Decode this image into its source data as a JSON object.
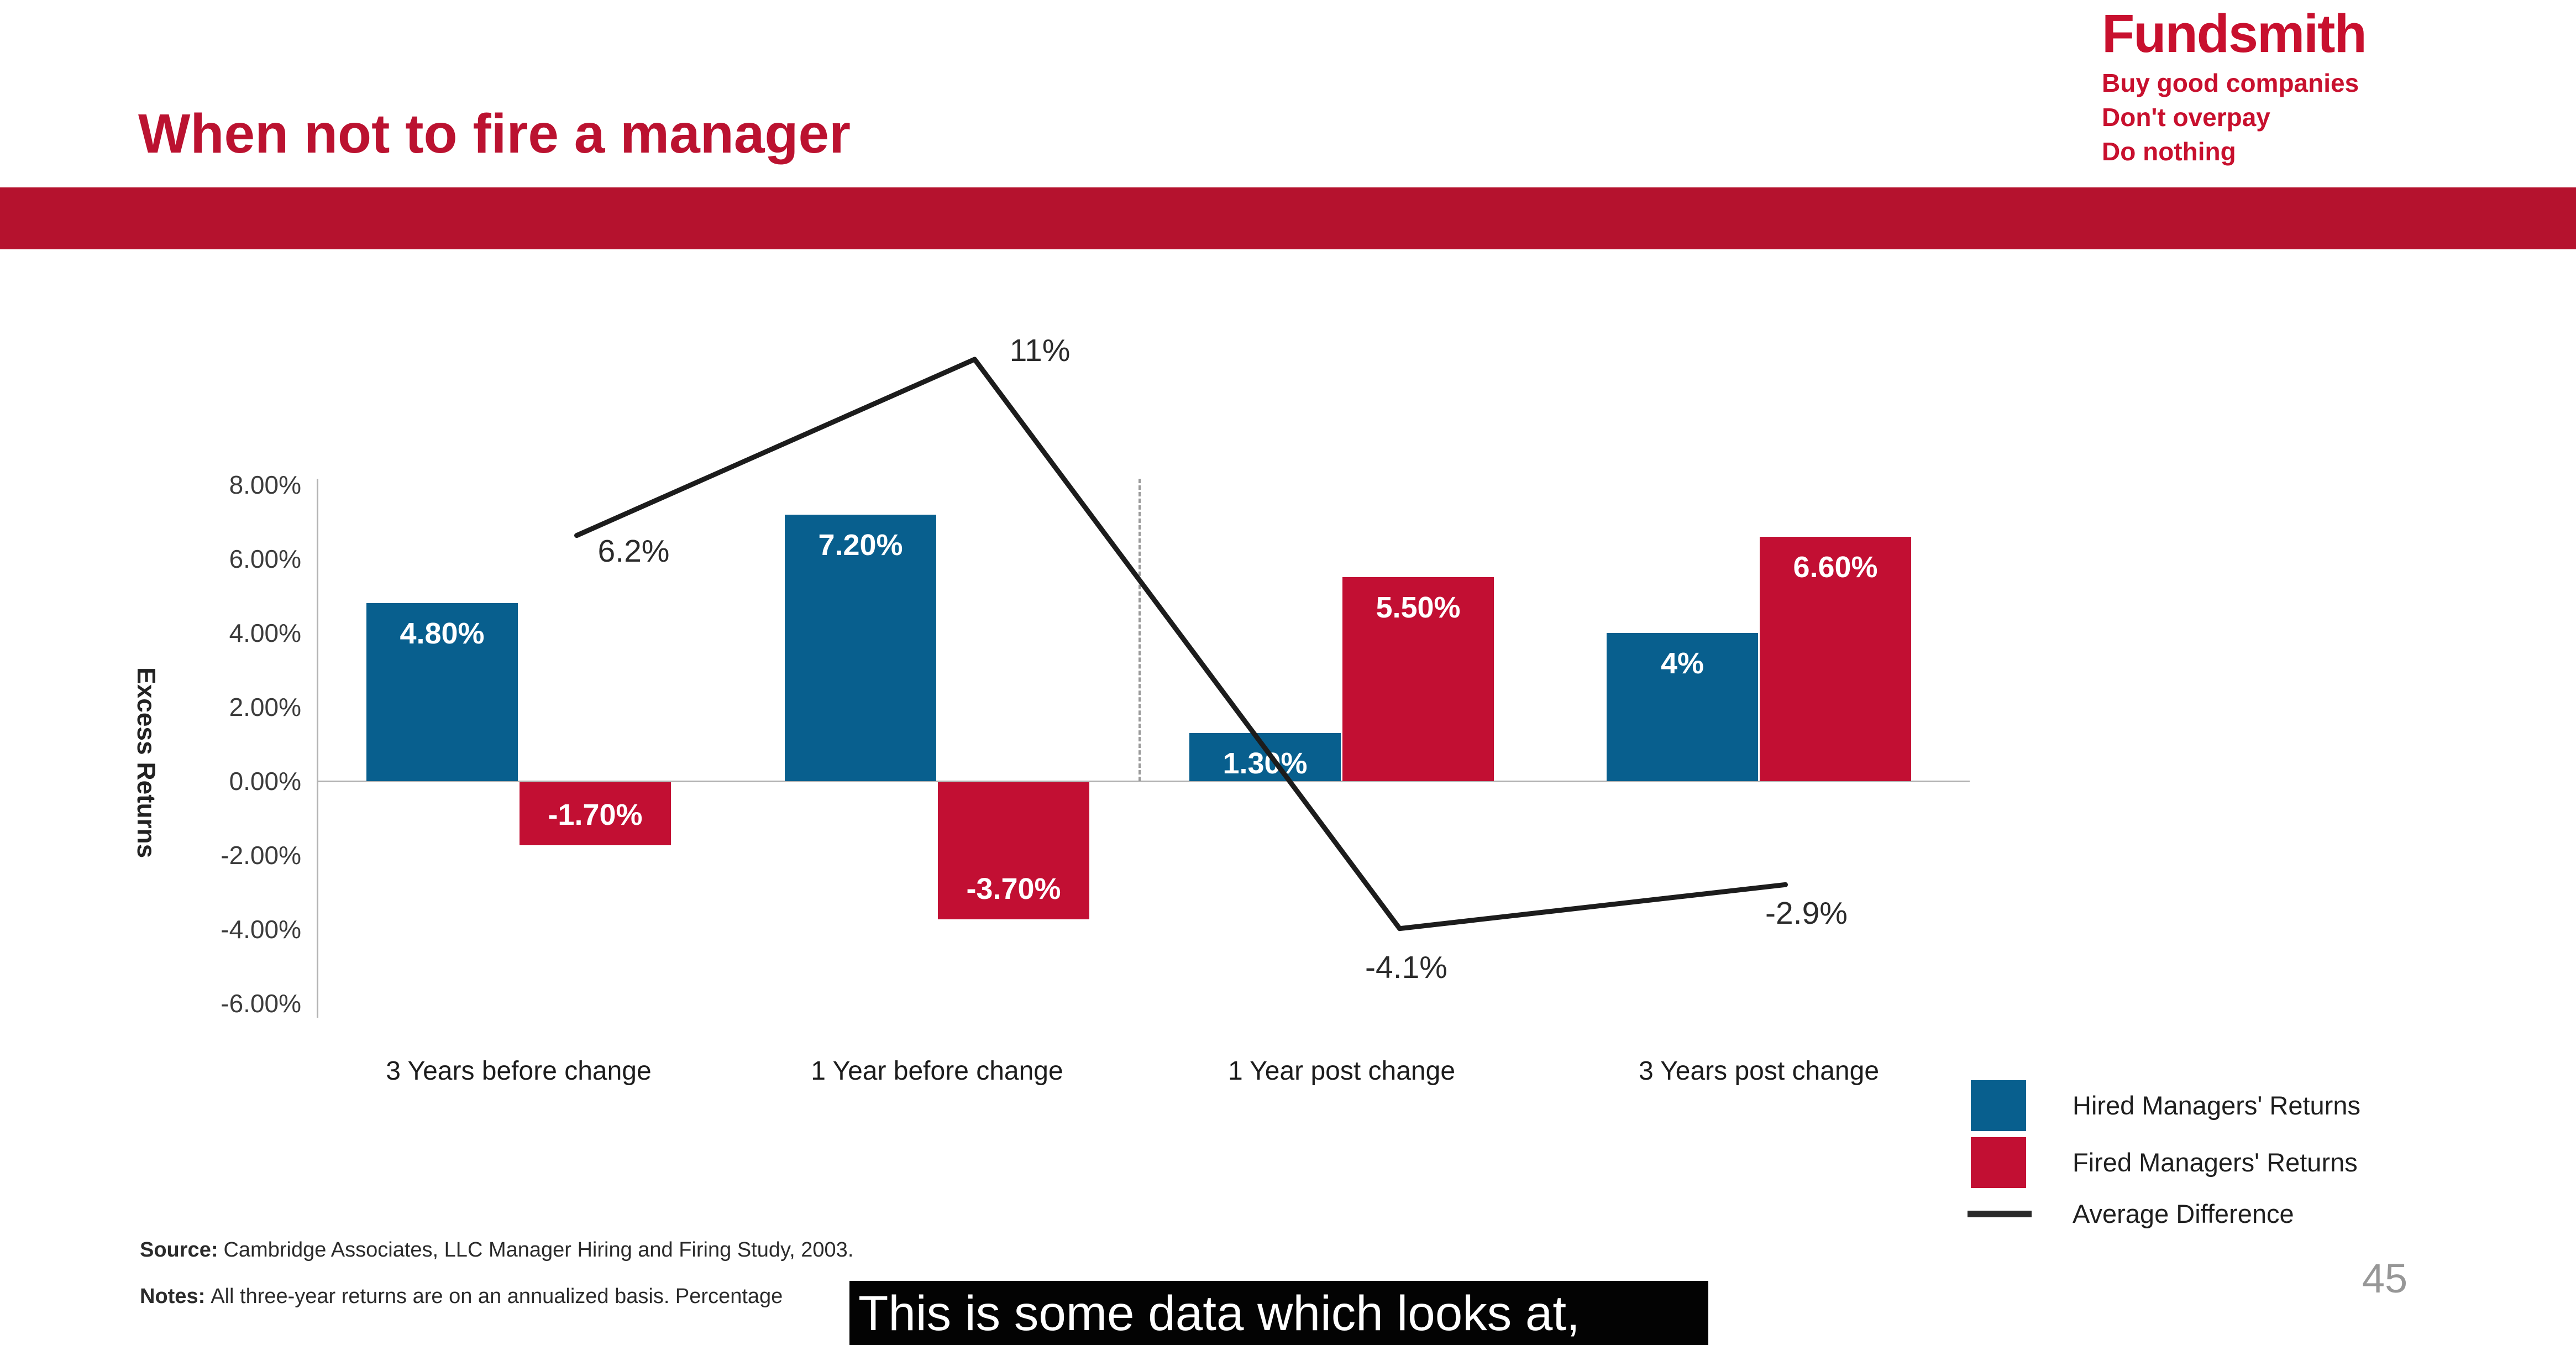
{
  "header": {
    "title": "When not to fire a manager"
  },
  "logo": {
    "brand": "Fundsmith",
    "taglines": [
      "Buy good companies",
      "Don't overpay",
      "Do nothing"
    ]
  },
  "chart_data": {
    "type": "bar",
    "categories": [
      "3 Years before change",
      "1 Year before change",
      "1 Year post change",
      "3 Years post change"
    ],
    "series": [
      {
        "name": "Hired Managers' Returns",
        "color": "#085F8E",
        "values": [
          4.8,
          7.2,
          1.3,
          4
        ],
        "labels": [
          "4.80%",
          "7.20%",
          "1.30%",
          "4%"
        ]
      },
      {
        "name": "Fired Managers' Returns",
        "color": "#C20F33",
        "values": [
          -1.7,
          -3.7,
          5.5,
          6.6
        ],
        "labels": [
          "-1.70%",
          "-3.70%",
          "5.50%",
          "6.60%"
        ]
      }
    ],
    "line_series": {
      "name": "Average Difference",
      "color": "#1C1C1C",
      "values": [
        6.2,
        11,
        -4.1,
        -2.9
      ],
      "labels": [
        "6.2%",
        "11%",
        "-4.1%",
        "-2.9%"
      ]
    },
    "ylabel": "Excess Returns",
    "xlabel": "",
    "ytick_labels": [
      "8.00%",
      "6.00%",
      "4.00%",
      "2.00%",
      "0.00%",
      "-2.00%",
      "-4.00%",
      "-6.00%"
    ],
    "ytick_values": [
      8,
      6,
      4,
      2,
      0,
      -2,
      -4,
      -6
    ],
    "ylim": [
      -6,
      8
    ],
    "grid": false,
    "legend_position": "bottom-right",
    "dashed_separator_between": [
      "1 Year before change",
      "1 Year post change"
    ]
  },
  "legend": {
    "items": [
      {
        "label": "Hired Managers' Returns",
        "swatch": "square",
        "color": "#085F8E"
      },
      {
        "label": "Fired Managers' Returns",
        "swatch": "square",
        "color": "#C20F33"
      },
      {
        "label": "Average Difference",
        "swatch": "line",
        "color": "#2B2B2B"
      }
    ]
  },
  "footer": {
    "source_label": "Source:",
    "source_text": "Cambridge Associates, LLC Manager Hiring and Firing Study, 2003.",
    "notes_label": "Notes:",
    "notes_text": "All three-year returns are on an annualized basis. Percentage",
    "page_number": "45"
  },
  "caption": {
    "text": "This is some data which looks at,"
  },
  "colors": {
    "banner_red": "#B5122E",
    "title_red": "#BB1230",
    "logo_red": "#C8102E",
    "bar_blue": "#085F8E",
    "bar_red": "#C20F33",
    "line_black": "#1C1C1C",
    "axis_gray": "#B3B3B3"
  }
}
